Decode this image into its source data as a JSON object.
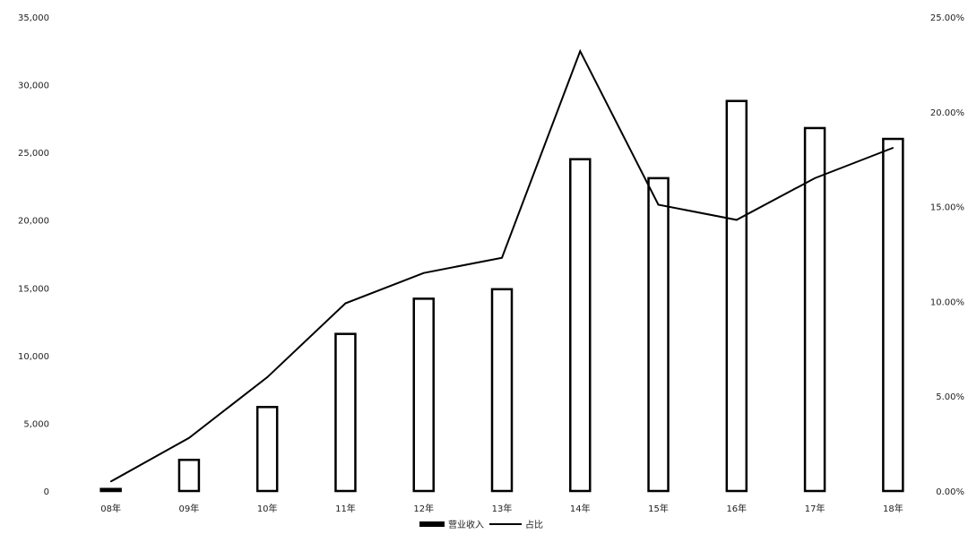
{
  "chart_data": {
    "type": "bar",
    "categories": [
      "08年",
      "09年",
      "10年",
      "11年",
      "12年",
      "13年",
      "14年",
      "15年",
      "16年",
      "17年",
      "18年"
    ],
    "series": [
      {
        "name": "营业收入",
        "type": "bar",
        "axis": "left",
        "values": [
          150,
          2300,
          6200,
          11600,
          14200,
          14900,
          24500,
          23100,
          28800,
          26800,
          26000
        ],
        "color": "#000000"
      },
      {
        "name": "占比",
        "type": "line",
        "axis": "right",
        "values": [
          0.5,
          2.8,
          6.0,
          9.9,
          11.5,
          12.3,
          23.2,
          15.1,
          14.3,
          16.5,
          18.1
        ],
        "color": "#000000"
      }
    ],
    "y_left": {
      "ylim": [
        0,
        35000
      ],
      "ticks": [
        "0",
        "5,000",
        "10,000",
        "15,000",
        "20,000",
        "25,000",
        "30,000",
        "35,000"
      ]
    },
    "y_right": {
      "ylim": [
        0,
        25
      ],
      "ticks": [
        "0.00%",
        "5.00%",
        "10.00%",
        "15.00%",
        "20.00%",
        "25.00%"
      ]
    },
    "grid": false,
    "legend_position": "bottom"
  }
}
